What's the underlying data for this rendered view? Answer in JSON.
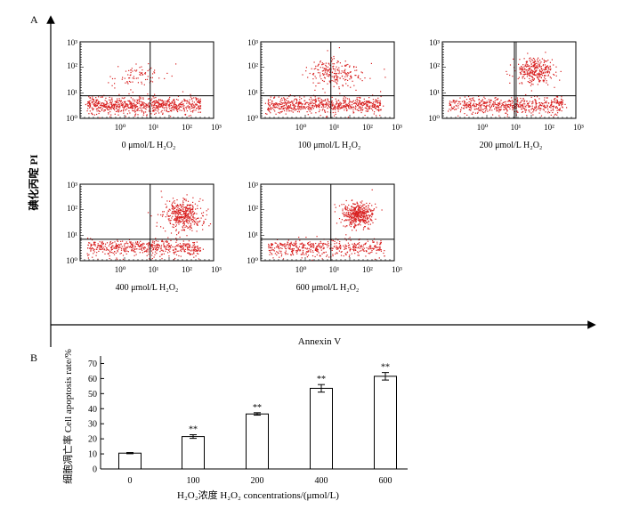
{
  "panel_a": {
    "label": "A",
    "y_axis_label": "碘化丙啶 PI",
    "x_axis_label": "Annexin V",
    "tick_labels": [
      "10⁰",
      "10¹",
      "10²",
      "10³"
    ],
    "plots": [
      {
        "dose": "0",
        "caption": "0 μmol/L H₂O₂"
      },
      {
        "dose": "100",
        "caption": "100 μmol/L H₂O₂"
      },
      {
        "dose": "200",
        "caption": "200 μmol/L H₂O₂"
      },
      {
        "dose": "400",
        "caption": "400 μmol/L H₂O₂"
      },
      {
        "dose": "600",
        "caption": "600 μmol/L H₂O₂"
      }
    ]
  },
  "panel_b": {
    "label": "B",
    "ylabel": "细胞凋亡率 Cell apoptosis rate/%",
    "xlabel": "H₂O₂浓度 H₂O₂ concentrations/(μmol/L)",
    "significance_marker": "**"
  },
  "colors": {
    "dots": "#d81e1e",
    "axis": "#000000"
  },
  "chart_data": {
    "type": "bar",
    "categories": [
      "0",
      "100",
      "200",
      "400",
      "600"
    ],
    "values": [
      10.5,
      21.5,
      36.5,
      53.5,
      61.5
    ],
    "errors": [
      0.4,
      1.2,
      0.8,
      2.5,
      2.5
    ],
    "significant": [
      false,
      true,
      true,
      true,
      true
    ],
    "ylim": [
      0,
      75
    ],
    "yticks": [
      0,
      10,
      20,
      30,
      40,
      50,
      60,
      70
    ],
    "ytick_labels": [
      "0",
      "10",
      "20",
      "30",
      "40",
      "50",
      "60",
      "70"
    ]
  }
}
